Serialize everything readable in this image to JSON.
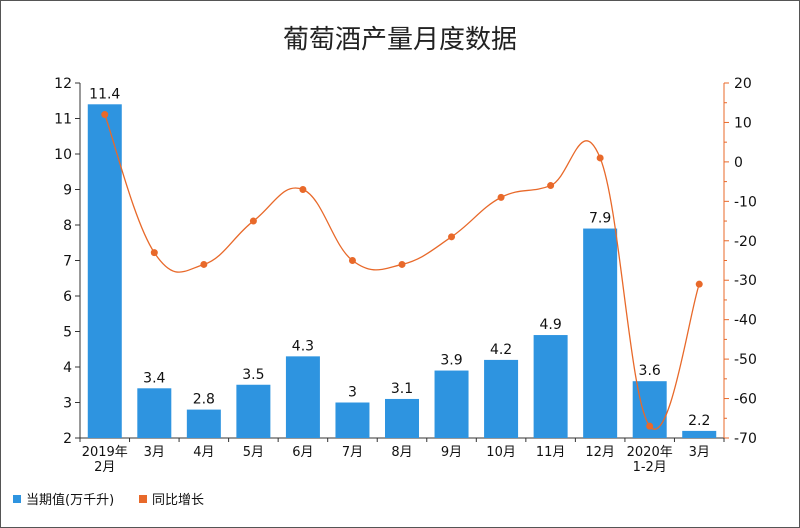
{
  "chart_data": {
    "type": "bar",
    "title": "葡萄酒产量月度数据",
    "categories": [
      [
        "2019年",
        "2月"
      ],
      [
        "3月"
      ],
      [
        "4月"
      ],
      [
        "5月"
      ],
      [
        "6月"
      ],
      [
        "7月"
      ],
      [
        "8月"
      ],
      [
        "9月"
      ],
      [
        "10月"
      ],
      [
        "11月"
      ],
      [
        "12月"
      ],
      [
        "2020年",
        "1-2月"
      ],
      [
        "3月"
      ]
    ],
    "series": [
      {
        "name": "当期值(万千升)",
        "type": "bar",
        "axis": "left",
        "color": "#2e94e0",
        "values": [
          11.4,
          3.4,
          2.8,
          3.5,
          4.3,
          3,
          3.1,
          3.9,
          4.2,
          4.9,
          7.9,
          3.6,
          2.2
        ],
        "labels": [
          "11.4",
          "3.4",
          "2.8",
          "3.5",
          "4.3",
          "3",
          "3.1",
          "3.9",
          "4.2",
          "4.9",
          "7.9",
          "3.6",
          "2.2"
        ]
      },
      {
        "name": "同比增长",
        "type": "line",
        "axis": "right",
        "color": "#e8692a",
        "values": [
          12,
          -23,
          -26,
          -15,
          -7,
          -25,
          -26,
          -19,
          -9,
          -6,
          1,
          -67,
          -31
        ]
      }
    ],
    "ylim_left": [
      2,
      12
    ],
    "yticks_left": [
      2,
      3,
      4,
      5,
      6,
      7,
      8,
      9,
      10,
      11,
      12
    ],
    "ylim_right": [
      -70,
      20
    ],
    "yticks_right": [
      20,
      10,
      0,
      -10,
      -20,
      -30,
      -40,
      -50,
      -60,
      -70
    ],
    "legend": "bottom-left",
    "grid": false
  }
}
